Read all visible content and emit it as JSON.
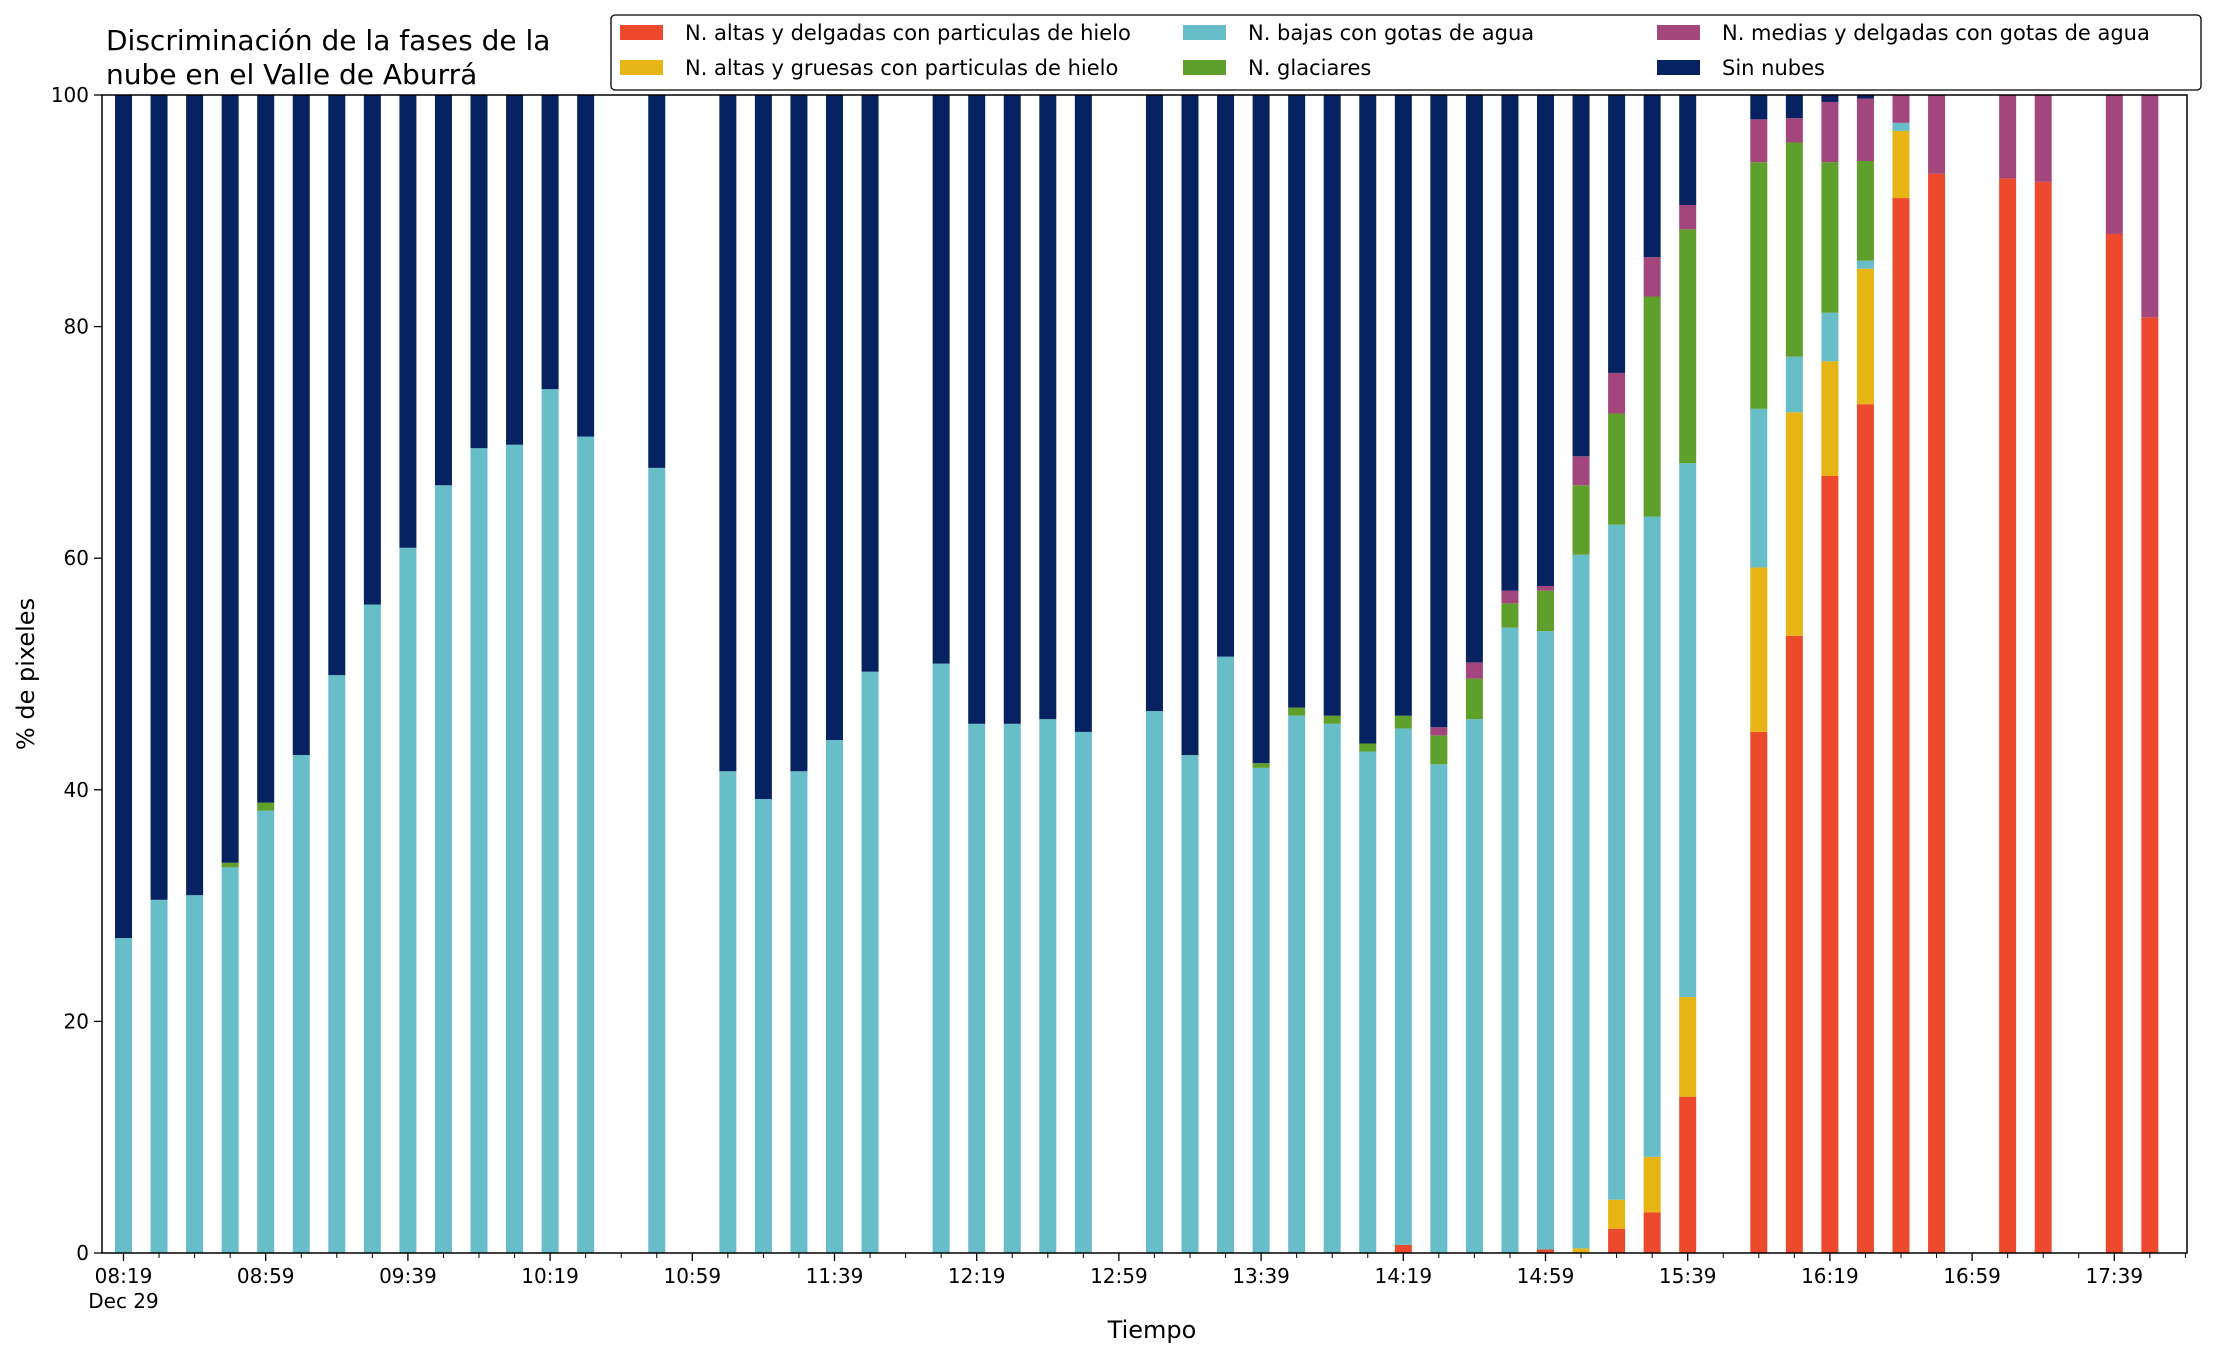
{
  "chart_data": {
    "type": "bar",
    "stacked": true,
    "title": "Discriminación de la fases de la nube en el Valle de Aburrá",
    "title_lines": [
      "Discriminación de la fases de la",
      "nube en el Valle de Aburrá"
    ],
    "xlabel": "Tiempo",
    "ylabel": "% de pixeles",
    "ylim": [
      0,
      100
    ],
    "yticks": [
      0,
      20,
      40,
      60,
      80,
      100
    ],
    "x_start": "08:19",
    "x_interval_min": 10,
    "slot_count": 59,
    "major_tick_every": 4,
    "xtick_labels": [
      "08:19",
      "08:59",
      "09:39",
      "10:19",
      "10:59",
      "11:39",
      "12:19",
      "12:59",
      "13:39",
      "14:19",
      "14:59",
      "15:39",
      "16:19",
      "16:59",
      "17:39"
    ],
    "xtick_date": "Dec 29",
    "legend_position": "top-right",
    "legend_columns": 3,
    "legend_order": [
      "hielo_delgadas",
      "hielo_gruesas",
      "agua_bajas",
      "glaciares",
      "agua_medias",
      "sin_nubes"
    ],
    "series": [
      {
        "key": "hielo_delgadas",
        "name": "N. altas y delgadas con particulas de hielo",
        "color": "#ed4a2d"
      },
      {
        "key": "hielo_gruesas",
        "name": "N. altas y gruesas con particulas de hielo",
        "color": "#e7b416"
      },
      {
        "key": "agua_bajas",
        "name": "N. bajas con gotas de agua",
        "color": "#67bec8"
      },
      {
        "key": "glaciares",
        "name": "N. glaciares",
        "color": "#5f9f2c"
      },
      {
        "key": "agua_medias",
        "name": "N. medias y delgadas con gotas de agua",
        "color": "#a4467e"
      },
      {
        "key": "sin_nubes",
        "name": "Sin nubes",
        "color": "#062261"
      }
    ],
    "stack_order": [
      "hielo_delgadas",
      "hielo_gruesas",
      "agua_bajas",
      "glaciares",
      "agua_medias",
      "sin_nubes"
    ],
    "bars": [
      {
        "time": "08:19",
        "hielo_delgadas": 0,
        "hielo_gruesas": 0,
        "agua_bajas": 27.2,
        "glaciares": 0,
        "agua_medias": 0,
        "sin_nubes": 72.8
      },
      {
        "time": "08:29",
        "hielo_delgadas": 0,
        "hielo_gruesas": 0,
        "agua_bajas": 30.5,
        "glaciares": 0,
        "agua_medias": 0,
        "sin_nubes": 69.5
      },
      {
        "time": "08:39",
        "hielo_delgadas": 0,
        "hielo_gruesas": 0,
        "agua_bajas": 30.9,
        "glaciares": 0,
        "agua_medias": 0,
        "sin_nubes": 69.1
      },
      {
        "time": "08:49",
        "hielo_delgadas": 0,
        "hielo_gruesas": 0,
        "agua_bajas": 33.3,
        "glaciares": 0.4,
        "agua_medias": 0,
        "sin_nubes": 66.3
      },
      {
        "time": "08:59",
        "hielo_delgadas": 0,
        "hielo_gruesas": 0,
        "agua_bajas": 38.2,
        "glaciares": 0.7,
        "agua_medias": 0,
        "sin_nubes": 61.1
      },
      {
        "time": "09:09",
        "hielo_delgadas": 0,
        "hielo_gruesas": 0,
        "agua_bajas": 43.0,
        "glaciares": 0,
        "agua_medias": 0,
        "sin_nubes": 57.0
      },
      {
        "time": "09:19",
        "hielo_delgadas": 0,
        "hielo_gruesas": 0,
        "agua_bajas": 49.9,
        "glaciares": 0,
        "agua_medias": 0,
        "sin_nubes": 50.1
      },
      {
        "time": "09:29",
        "hielo_delgadas": 0,
        "hielo_gruesas": 0,
        "agua_bajas": 56.0,
        "glaciares": 0,
        "agua_medias": 0,
        "sin_nubes": 44.0
      },
      {
        "time": "09:39",
        "hielo_delgadas": 0,
        "hielo_gruesas": 0,
        "agua_bajas": 60.9,
        "glaciares": 0,
        "agua_medias": 0,
        "sin_nubes": 39.1
      },
      {
        "time": "09:49",
        "hielo_delgadas": 0,
        "hielo_gruesas": 0,
        "agua_bajas": 66.3,
        "glaciares": 0,
        "agua_medias": 0,
        "sin_nubes": 33.7
      },
      {
        "time": "09:59",
        "hielo_delgadas": 0,
        "hielo_gruesas": 0,
        "agua_bajas": 69.5,
        "glaciares": 0,
        "agua_medias": 0,
        "sin_nubes": 30.5
      },
      {
        "time": "10:09",
        "hielo_delgadas": 0,
        "hielo_gruesas": 0,
        "agua_bajas": 69.8,
        "glaciares": 0,
        "agua_medias": 0,
        "sin_nubes": 30.2
      },
      {
        "time": "10:19",
        "hielo_delgadas": 0,
        "hielo_gruesas": 0,
        "agua_bajas": 74.6,
        "glaciares": 0,
        "agua_medias": 0,
        "sin_nubes": 25.4
      },
      {
        "time": "10:29",
        "hielo_delgadas": 0,
        "hielo_gruesas": 0,
        "agua_bajas": 70.5,
        "glaciares": 0,
        "agua_medias": 0,
        "sin_nubes": 29.5
      },
      {
        "time": "10:49",
        "hielo_delgadas": 0,
        "hielo_gruesas": 0,
        "agua_bajas": 67.8,
        "glaciares": 0,
        "agua_medias": 0,
        "sin_nubes": 32.2
      },
      {
        "time": "11:09",
        "hielo_delgadas": 0,
        "hielo_gruesas": 0,
        "agua_bajas": 41.6,
        "glaciares": 0,
        "agua_medias": 0,
        "sin_nubes": 58.4
      },
      {
        "time": "11:19",
        "hielo_delgadas": 0,
        "hielo_gruesas": 0,
        "agua_bajas": 39.2,
        "glaciares": 0,
        "agua_medias": 0,
        "sin_nubes": 60.8
      },
      {
        "time": "11:29",
        "hielo_delgadas": 0,
        "hielo_gruesas": 0,
        "agua_bajas": 41.6,
        "glaciares": 0,
        "agua_medias": 0,
        "sin_nubes": 58.4
      },
      {
        "time": "11:39",
        "hielo_delgadas": 0,
        "hielo_gruesas": 0,
        "agua_bajas": 44.3,
        "glaciares": 0,
        "agua_medias": 0,
        "sin_nubes": 55.7
      },
      {
        "time": "11:49",
        "hielo_delgadas": 0,
        "hielo_gruesas": 0,
        "agua_bajas": 50.2,
        "glaciares": 0,
        "agua_medias": 0,
        "sin_nubes": 49.8
      },
      {
        "time": "12:09",
        "hielo_delgadas": 0,
        "hielo_gruesas": 0,
        "agua_bajas": 50.9,
        "glaciares": 0,
        "agua_medias": 0,
        "sin_nubes": 49.1
      },
      {
        "time": "12:19",
        "hielo_delgadas": 0,
        "hielo_gruesas": 0,
        "agua_bajas": 45.7,
        "glaciares": 0,
        "agua_medias": 0,
        "sin_nubes": 54.3
      },
      {
        "time": "12:29",
        "hielo_delgadas": 0,
        "hielo_gruesas": 0,
        "agua_bajas": 45.7,
        "glaciares": 0,
        "agua_medias": 0,
        "sin_nubes": 54.3
      },
      {
        "time": "12:39",
        "hielo_delgadas": 0,
        "hielo_gruesas": 0,
        "agua_bajas": 46.1,
        "glaciares": 0,
        "agua_medias": 0,
        "sin_nubes": 53.9
      },
      {
        "time": "12:49",
        "hielo_delgadas": 0,
        "hielo_gruesas": 0,
        "agua_bajas": 45.0,
        "glaciares": 0,
        "agua_medias": 0,
        "sin_nubes": 55.0
      },
      {
        "time": "13:09",
        "hielo_delgadas": 0,
        "hielo_gruesas": 0,
        "agua_bajas": 46.8,
        "glaciares": 0,
        "agua_medias": 0,
        "sin_nubes": 53.2
      },
      {
        "time": "13:19",
        "hielo_delgadas": 0,
        "hielo_gruesas": 0,
        "agua_bajas": 43.0,
        "glaciares": 0,
        "agua_medias": 0,
        "sin_nubes": 57.0
      },
      {
        "time": "13:29",
        "hielo_delgadas": 0,
        "hielo_gruesas": 0,
        "agua_bajas": 51.5,
        "glaciares": 0,
        "agua_medias": 0,
        "sin_nubes": 48.5
      },
      {
        "time": "13:39",
        "hielo_delgadas": 0,
        "hielo_gruesas": 0,
        "agua_bajas": 41.9,
        "glaciares": 0.4,
        "agua_medias": 0,
        "sin_nubes": 57.7
      },
      {
        "time": "13:49",
        "hielo_delgadas": 0,
        "hielo_gruesas": 0,
        "agua_bajas": 46.4,
        "glaciares": 0.7,
        "agua_medias": 0,
        "sin_nubes": 52.9
      },
      {
        "time": "13:59",
        "hielo_delgadas": 0,
        "hielo_gruesas": 0,
        "agua_bajas": 45.7,
        "glaciares": 0.7,
        "agua_medias": 0,
        "sin_nubes": 53.6
      },
      {
        "time": "14:09",
        "hielo_delgadas": 0,
        "hielo_gruesas": 0,
        "agua_bajas": 43.3,
        "glaciares": 0.7,
        "agua_medias": 0,
        "sin_nubes": 56.0
      },
      {
        "time": "14:19",
        "hielo_delgadas": 0.7,
        "hielo_gruesas": 0,
        "agua_bajas": 44.6,
        "glaciares": 1.1,
        "agua_medias": 0,
        "sin_nubes": 53.6
      },
      {
        "time": "14:29",
        "hielo_delgadas": 0,
        "hielo_gruesas": 0,
        "agua_bajas": 42.2,
        "glaciares": 2.5,
        "agua_medias": 0.7,
        "sin_nubes": 54.6
      },
      {
        "time": "14:39",
        "hielo_delgadas": 0,
        "hielo_gruesas": 0,
        "agua_bajas": 46.1,
        "glaciares": 3.5,
        "agua_medias": 1.4,
        "sin_nubes": 49.0
      },
      {
        "time": "14:49",
        "hielo_delgadas": 0,
        "hielo_gruesas": 0,
        "agua_bajas": 54.0,
        "glaciares": 2.1,
        "agua_medias": 1.1,
        "sin_nubes": 42.8
      },
      {
        "time": "14:59",
        "hielo_delgadas": 0.3,
        "hielo_gruesas": 0,
        "agua_bajas": 53.4,
        "glaciares": 3.5,
        "agua_medias": 0.4,
        "sin_nubes": 42.4
      },
      {
        "time": "15:09",
        "hielo_delgadas": 0,
        "hielo_gruesas": 0.4,
        "agua_bajas": 59.9,
        "glaciares": 6.0,
        "agua_medias": 2.5,
        "sin_nubes": 31.2
      },
      {
        "time": "15:19",
        "hielo_delgadas": 2.1,
        "hielo_gruesas": 2.5,
        "agua_bajas": 58.3,
        "glaciares": 9.6,
        "agua_medias": 3.5,
        "sin_nubes": 24.0
      },
      {
        "time": "15:29",
        "hielo_delgadas": 3.5,
        "hielo_gruesas": 4.8,
        "agua_bajas": 55.3,
        "glaciares": 19.0,
        "agua_medias": 3.4,
        "sin_nubes": 14.0
      },
      {
        "time": "15:39",
        "hielo_delgadas": 13.5,
        "hielo_gruesas": 8.6,
        "agua_bajas": 46.1,
        "glaciares": 20.2,
        "agua_medias": 2.1,
        "sin_nubes": 9.5
      },
      {
        "time": "15:59",
        "hielo_delgadas": 45.0,
        "hielo_gruesas": 14.2,
        "agua_bajas": 13.7,
        "glaciares": 21.3,
        "agua_medias": 3.7,
        "sin_nubes": 2.1
      },
      {
        "time": "16:09",
        "hielo_delgadas": 53.3,
        "hielo_gruesas": 19.3,
        "agua_bajas": 4.8,
        "glaciares": 18.5,
        "agua_medias": 2.1,
        "sin_nubes": 2.0
      },
      {
        "time": "16:19",
        "hielo_delgadas": 67.1,
        "hielo_gruesas": 9.9,
        "agua_bajas": 4.2,
        "glaciares": 13.0,
        "agua_medias": 5.2,
        "sin_nubes": 0.6
      },
      {
        "time": "16:29",
        "hielo_delgadas": 73.3,
        "hielo_gruesas": 11.7,
        "agua_bajas": 0.7,
        "glaciares": 8.6,
        "agua_medias": 5.4,
        "sin_nubes": 0.3
      },
      {
        "time": "16:39",
        "hielo_delgadas": 91.1,
        "hielo_gruesas": 5.8,
        "agua_bajas": 0.7,
        "glaciares": 0,
        "agua_medias": 2.4,
        "sin_nubes": 0
      },
      {
        "time": "16:49",
        "hielo_delgadas": 93.2,
        "hielo_gruesas": 0,
        "agua_bajas": 0,
        "glaciares": 0,
        "agua_medias": 6.8,
        "sin_nubes": 0
      },
      {
        "time": "17:09",
        "hielo_delgadas": 92.8,
        "hielo_gruesas": 0,
        "agua_bajas": 0,
        "glaciares": 0,
        "agua_medias": 7.2,
        "sin_nubes": 0
      },
      {
        "time": "17:19",
        "hielo_delgadas": 92.5,
        "hielo_gruesas": 0,
        "agua_bajas": 0,
        "glaciares": 0,
        "agua_medias": 7.5,
        "sin_nubes": 0
      },
      {
        "time": "17:39",
        "hielo_delgadas": 88.0,
        "hielo_gruesas": 0,
        "agua_bajas": 0,
        "glaciares": 0,
        "agua_medias": 12.0,
        "sin_nubes": 0
      },
      {
        "time": "17:49",
        "hielo_delgadas": 80.8,
        "hielo_gruesas": 0,
        "agua_bajas": 0,
        "glaciares": 0,
        "agua_medias": 19.2,
        "sin_nubes": 0
      }
    ]
  }
}
